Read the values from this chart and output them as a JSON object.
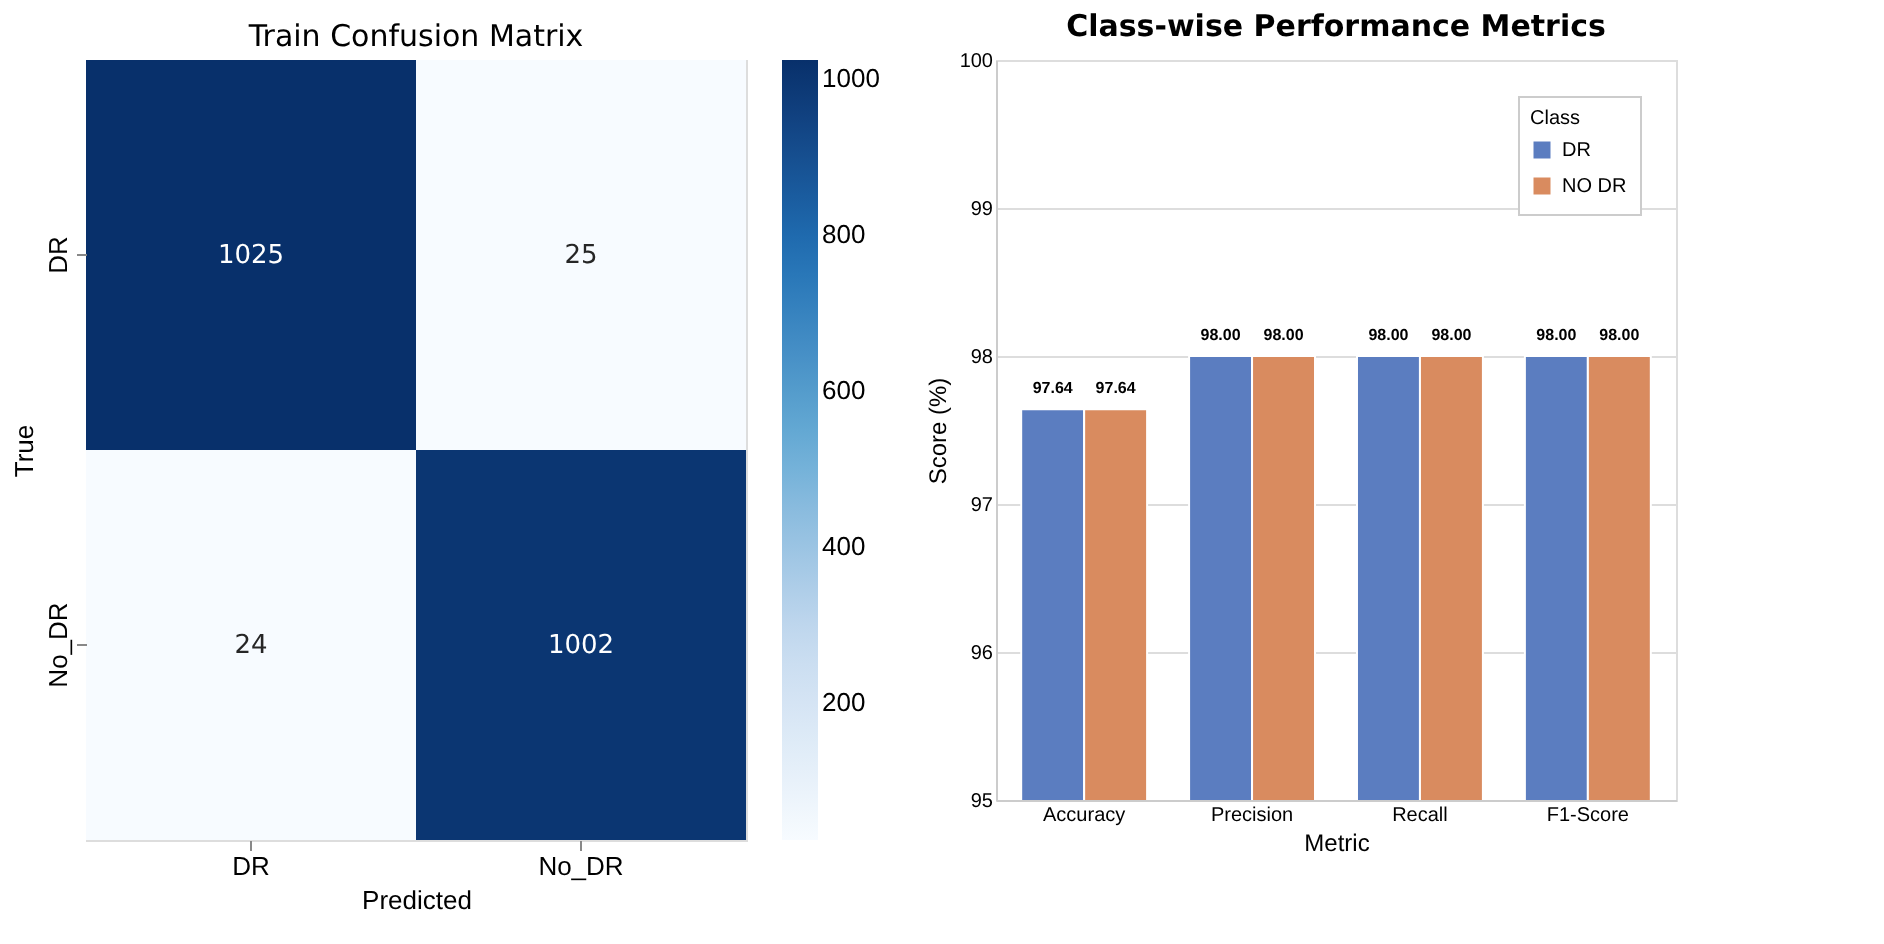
{
  "chart_data": [
    {
      "type": "heatmap",
      "title": "Train Confusion Matrix",
      "xlabel": "Predicted",
      "ylabel": "True",
      "categories": [
        "DR",
        "No_DR"
      ],
      "y_categories": [
        "DR",
        "No_DR"
      ],
      "cells": [
        [
          1025,
          25
        ],
        [
          24,
          1002
        ]
      ],
      "data_labels": true,
      "clim": [
        24,
        1025
      ],
      "cticks": [
        200,
        400,
        600,
        800,
        1000
      ]
    },
    {
      "type": "bar",
      "title": "Class-wise Performance Metrics",
      "xlabel": "Metric",
      "ylabel": "Score (%)",
      "legend_title": "Class",
      "categories": [
        "Accuracy",
        "Precision",
        "Recall",
        "F1-Score"
      ],
      "series": [
        {
          "name": "DR",
          "color": "#5b7dc0",
          "values": [
            97.64,
            98.0,
            98.0,
            98.0
          ],
          "value_labels": [
            "97.64",
            "98.00",
            "98.00",
            "98.00"
          ]
        },
        {
          "name": "NO DR",
          "color": "#d98b5f",
          "values": [
            97.64,
            98.0,
            98.0,
            98.0
          ],
          "value_labels": [
            "97.64",
            "98.00",
            "98.00",
            "98.00"
          ]
        }
      ],
      "ylim": [
        95,
        100
      ],
      "yticks": [
        95,
        96,
        97,
        98,
        99,
        100
      ],
      "grid": "y",
      "legend": "top right"
    }
  ]
}
